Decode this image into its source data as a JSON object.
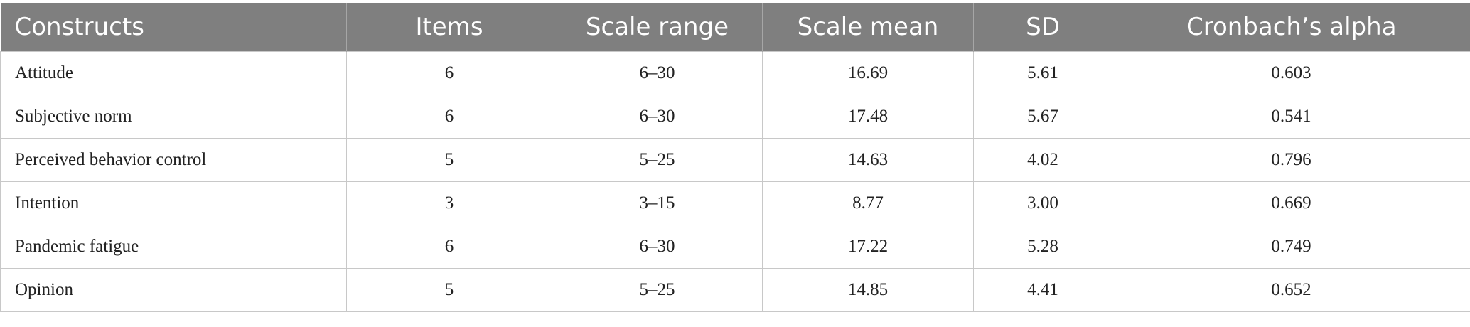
{
  "table": {
    "headers": [
      "Constructs",
      "Items",
      "Scale range",
      "Scale mean",
      "SD",
      "Cronbach’s alpha"
    ],
    "rows": [
      [
        "Attitude",
        "6",
        "6–30",
        "16.69",
        "5.61",
        "0.603"
      ],
      [
        "Subjective norm",
        "6",
        "6–30",
        "17.48",
        "5.67",
        "0.541"
      ],
      [
        "Perceived behavior control",
        "5",
        "5–25",
        "14.63",
        "4.02",
        "0.796"
      ],
      [
        "Intention",
        "3",
        "3–15",
        "8.77",
        "3.00",
        "0.669"
      ],
      [
        "Pandemic fatigue",
        "6",
        "6–30",
        "17.22",
        "5.28",
        "0.749"
      ],
      [
        "Opinion",
        "5",
        "5–25",
        "14.85",
        "4.41",
        "0.652"
      ]
    ]
  }
}
